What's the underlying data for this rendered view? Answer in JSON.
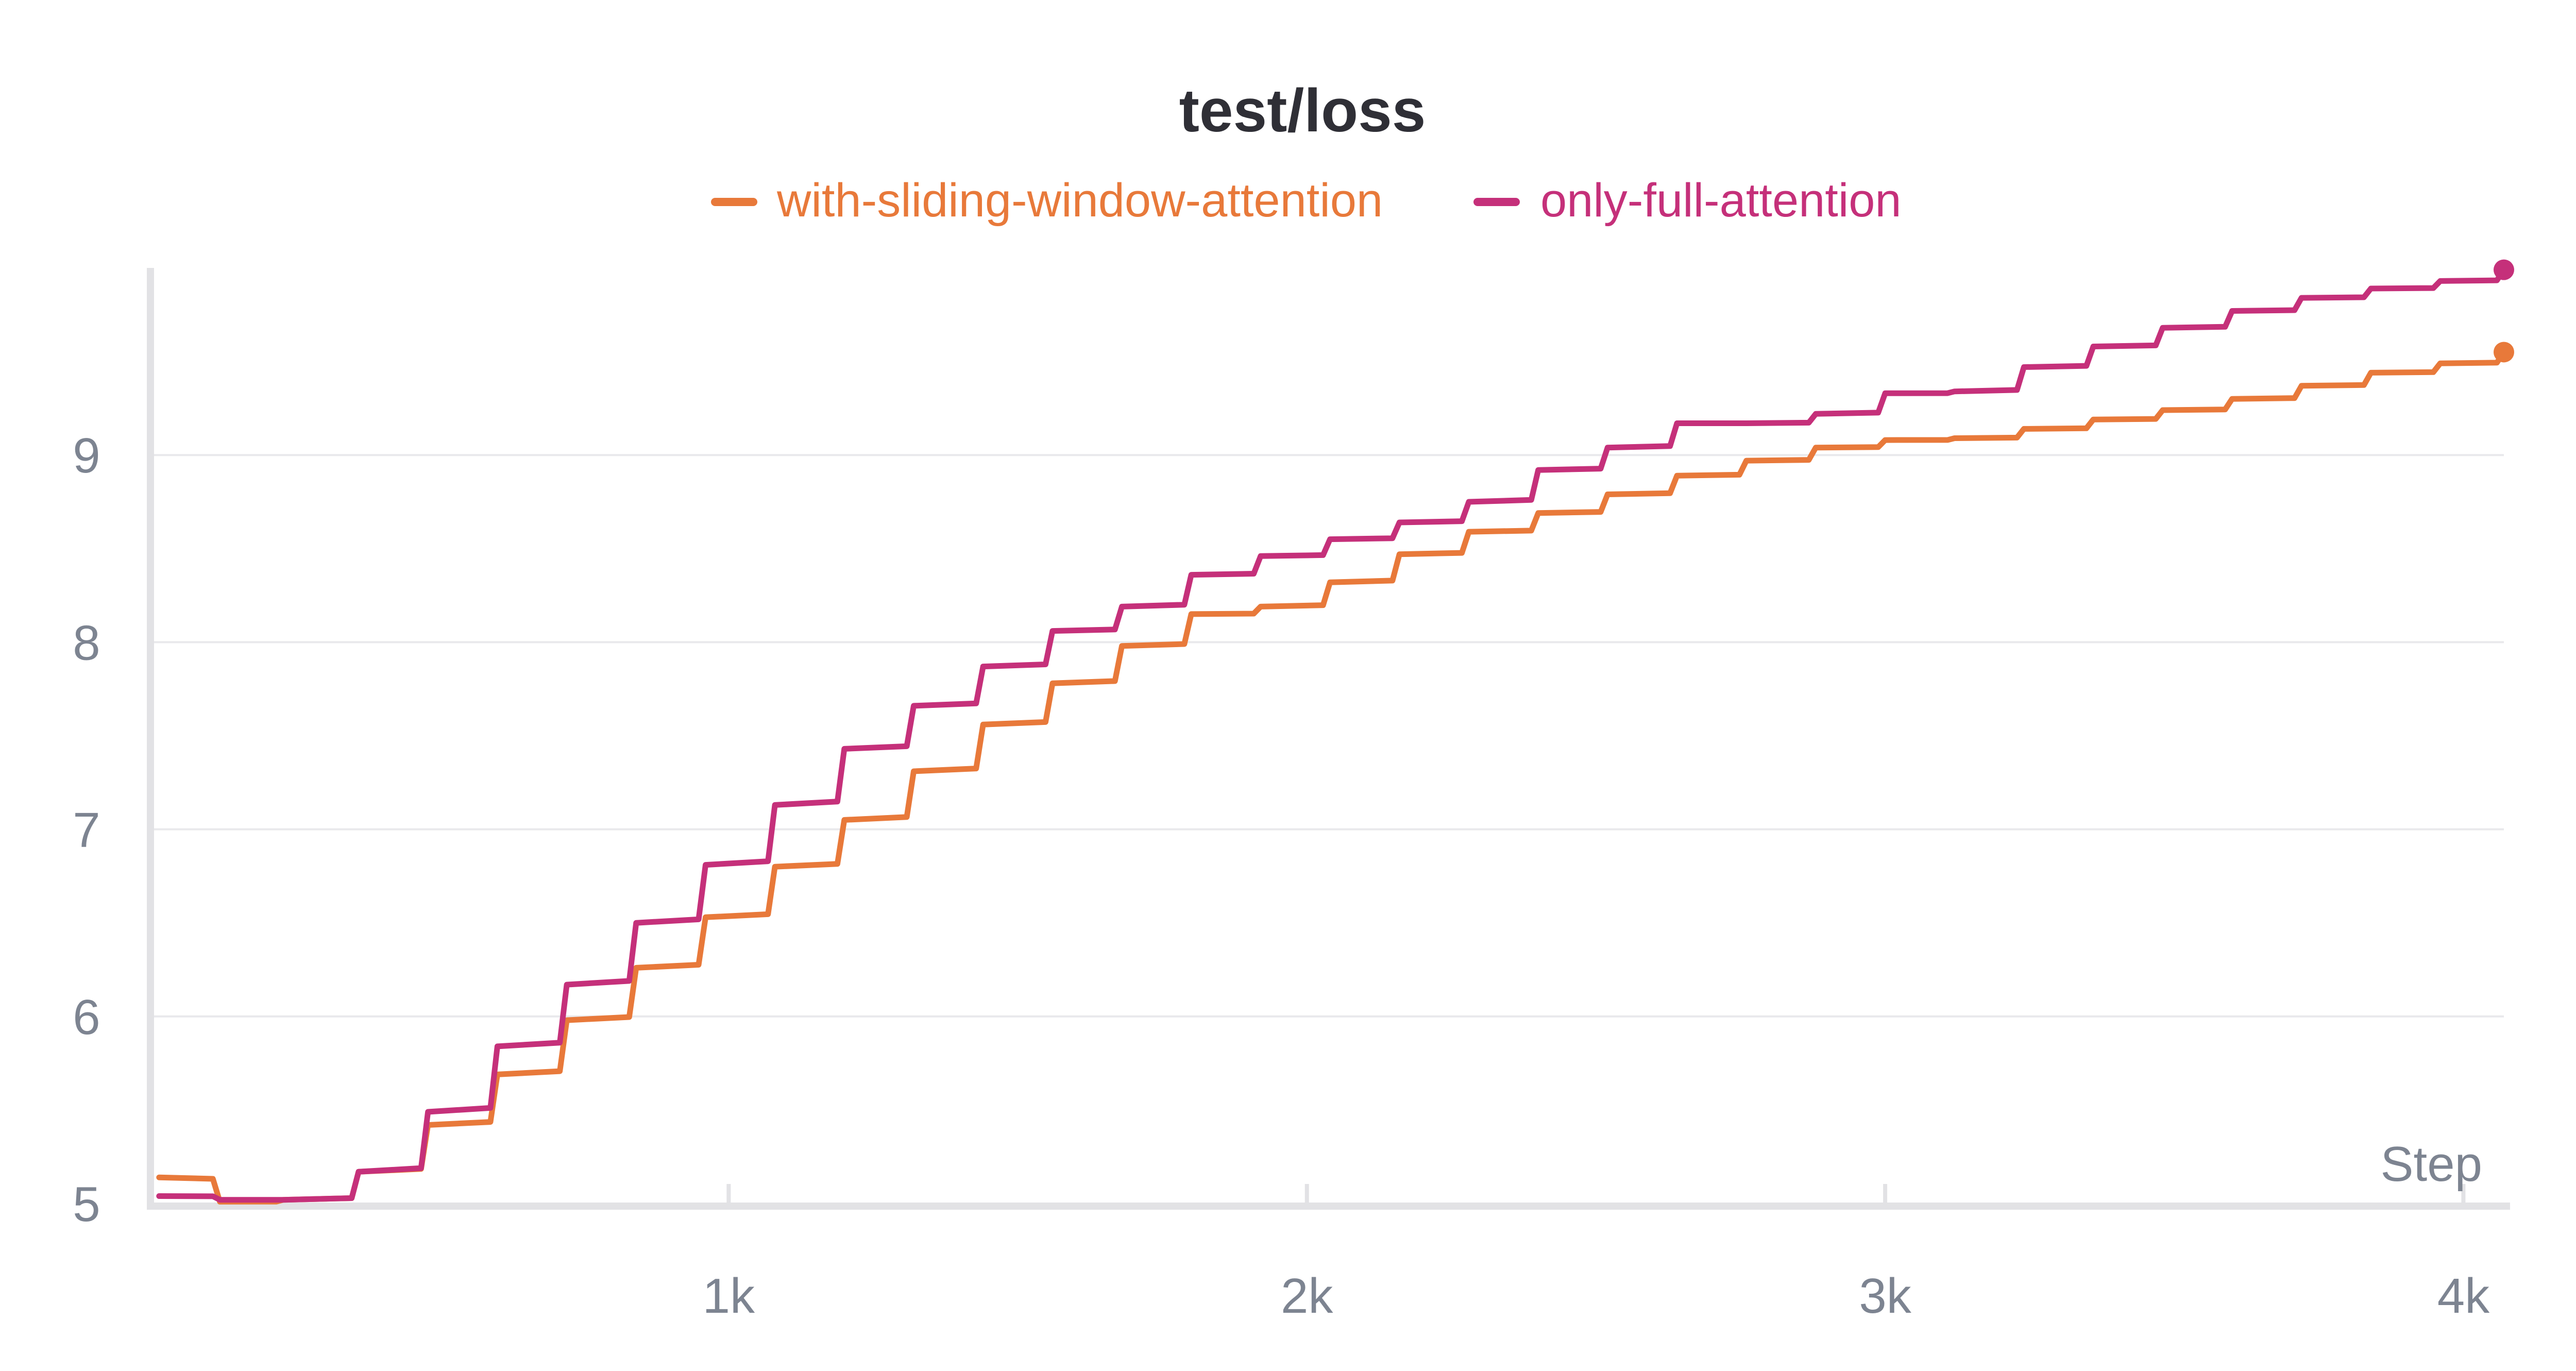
{
  "chart_data": {
    "type": "line",
    "title": "test/loss",
    "xlabel": "Step",
    "ylabel": "",
    "xlim": [
      0,
      4070
    ],
    "ylim": [
      5,
      10
    ],
    "x_ticks": [
      1000,
      2000,
      3000,
      4000
    ],
    "x_tick_labels": [
      "1k",
      "2k",
      "3k",
      "4k"
    ],
    "y_ticks": [
      5,
      6,
      7,
      8,
      9
    ],
    "y_tick_labels": [
      "5",
      "6",
      "7",
      "8",
      "9"
    ],
    "grid": true,
    "legend_position": "top-center",
    "series": [
      {
        "name": "with-sliding-window-attention",
        "color": "#e8793a",
        "x": [
          15,
          120,
          230,
          360,
          480,
          600,
          720,
          840,
          960,
          1080,
          1200,
          1320,
          1440,
          1560,
          1680,
          1800,
          1920,
          2040,
          2160,
          2280,
          2400,
          2520,
          2640,
          2760,
          2880,
          3000,
          3120,
          3240,
          3360,
          3480,
          3600,
          3720,
          3840,
          3960,
          4070
        ],
        "y": [
          5.14,
          5.01,
          5.02,
          5.17,
          5.42,
          5.69,
          5.98,
          6.26,
          6.53,
          6.8,
          7.05,
          7.31,
          7.56,
          7.78,
          7.98,
          8.15,
          8.19,
          8.32,
          8.47,
          8.59,
          8.69,
          8.79,
          8.89,
          8.97,
          9.04,
          9.08,
          9.09,
          9.14,
          9.19,
          9.24,
          9.3,
          9.37,
          9.44,
          9.49,
          9.55
        ]
      },
      {
        "name": "only-full-attention",
        "color": "#c5307a",
        "x": [
          15,
          120,
          230,
          360,
          480,
          600,
          720,
          840,
          960,
          1080,
          1200,
          1320,
          1440,
          1560,
          1680,
          1800,
          1920,
          2040,
          2160,
          2280,
          2400,
          2520,
          2640,
          2760,
          2880,
          3000,
          3120,
          3240,
          3360,
          3480,
          3600,
          3720,
          3840,
          3960,
          4070
        ],
        "y": [
          5.04,
          5.02,
          5.02,
          5.17,
          5.49,
          5.84,
          6.17,
          6.5,
          6.81,
          7.13,
          7.43,
          7.66,
          7.87,
          8.06,
          8.19,
          8.36,
          8.46,
          8.55,
          8.64,
          8.75,
          8.92,
          9.04,
          9.17,
          9.17,
          9.22,
          9.33,
          9.34,
          9.47,
          9.58,
          9.68,
          9.77,
          9.84,
          9.89,
          9.93,
          9.99
        ]
      }
    ]
  }
}
